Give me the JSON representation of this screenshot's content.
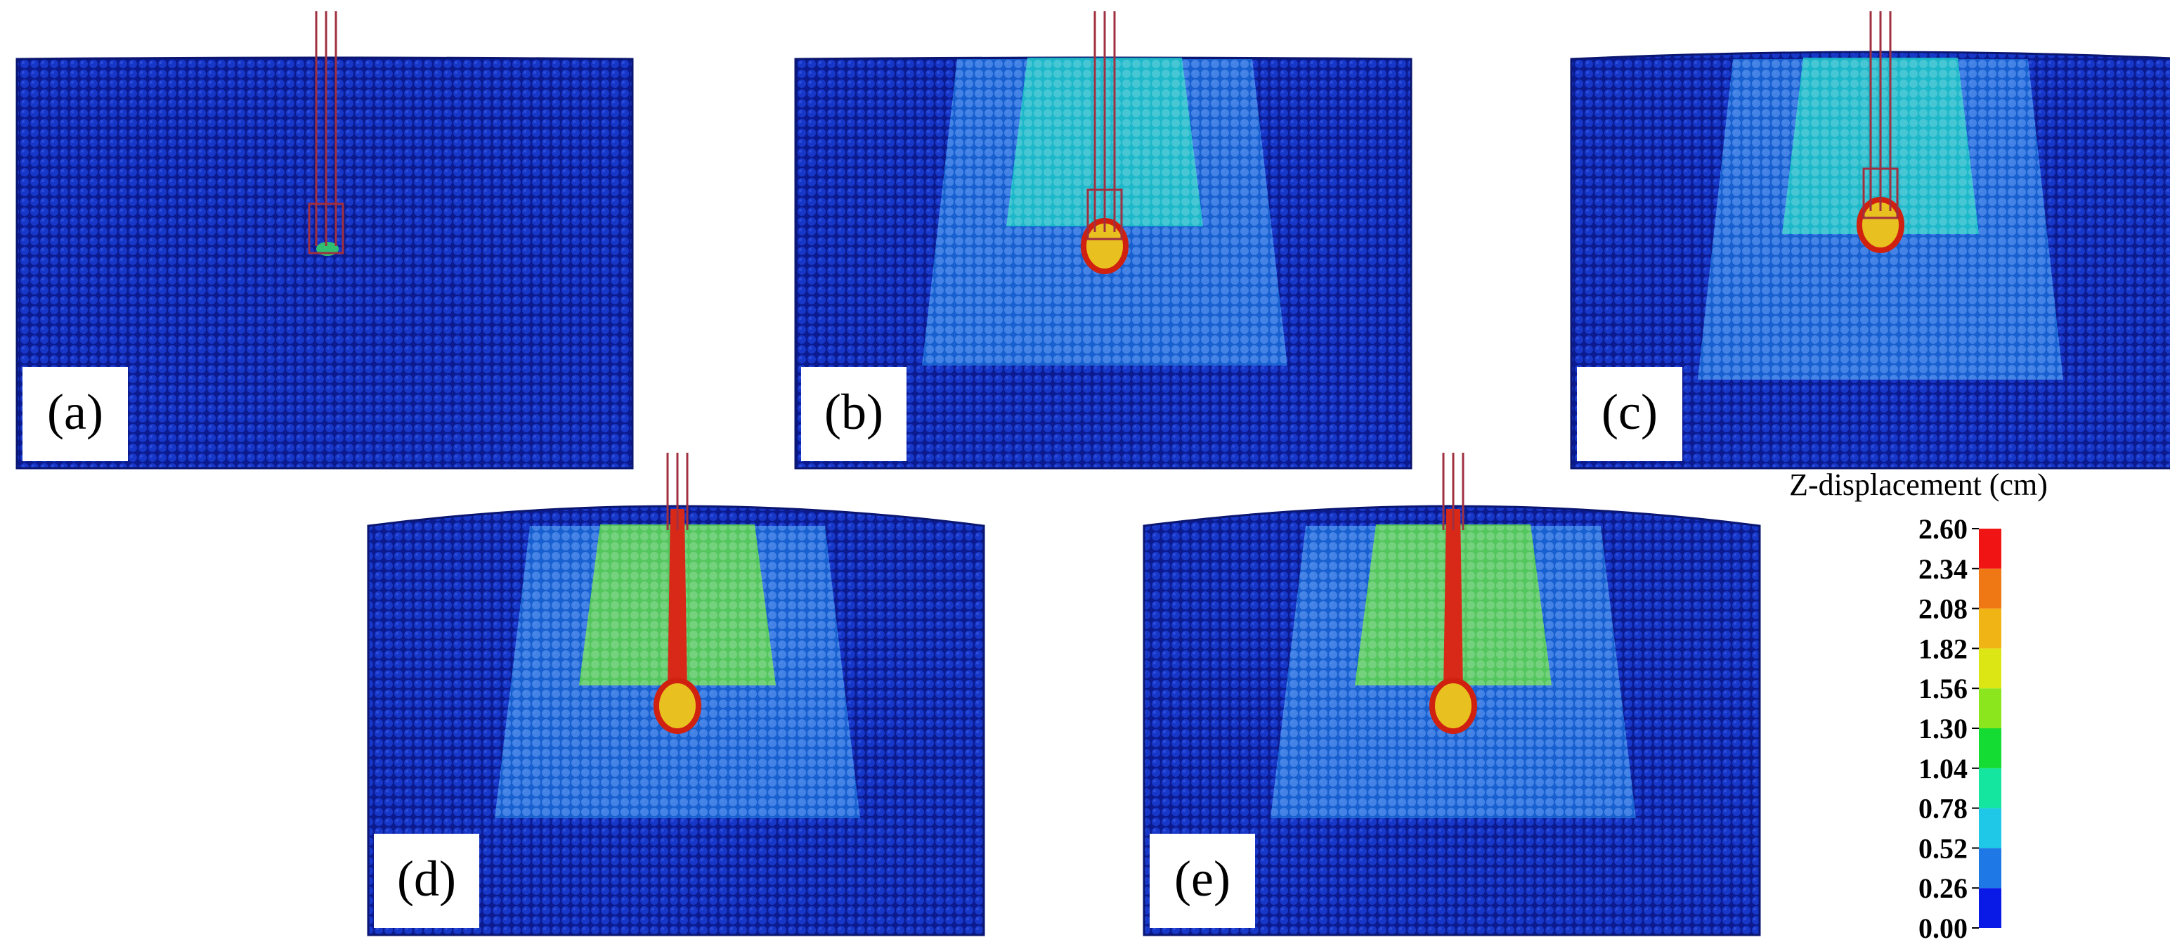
{
  "panels": [
    {
      "label": "(a)"
    },
    {
      "label": "(b)"
    },
    {
      "label": "(c)"
    },
    {
      "label": "(d)"
    },
    {
      "label": "(e)"
    }
  ],
  "colorbar": {
    "title": "Z-displacement (cm)",
    "ticks": [
      {
        "value": 0,
        "label": "0.00"
      },
      {
        "value": 0.26,
        "label": "0.26"
      },
      {
        "value": 0.52,
        "label": "0.52"
      },
      {
        "value": 0.78,
        "label": "0.78"
      },
      {
        "value": 1.04,
        "label": "1.04"
      },
      {
        "value": 1.3,
        "label": "1.30"
      },
      {
        "value": 1.56,
        "label": "1.56"
      },
      {
        "value": 1.82,
        "label": "1.82"
      },
      {
        "value": 2.08,
        "label": "2.08"
      },
      {
        "value": 2.34,
        "label": "2.34"
      },
      {
        "value": 2.6,
        "label": "2.60"
      }
    ],
    "colors": [
      "#0a1ae6",
      "#1e78e6",
      "#1ec8e6",
      "#14e6a0",
      "#14dc32",
      "#8ce61e",
      "#dce614",
      "#f0b414",
      "#f07814",
      "#f01414"
    ]
  }
}
